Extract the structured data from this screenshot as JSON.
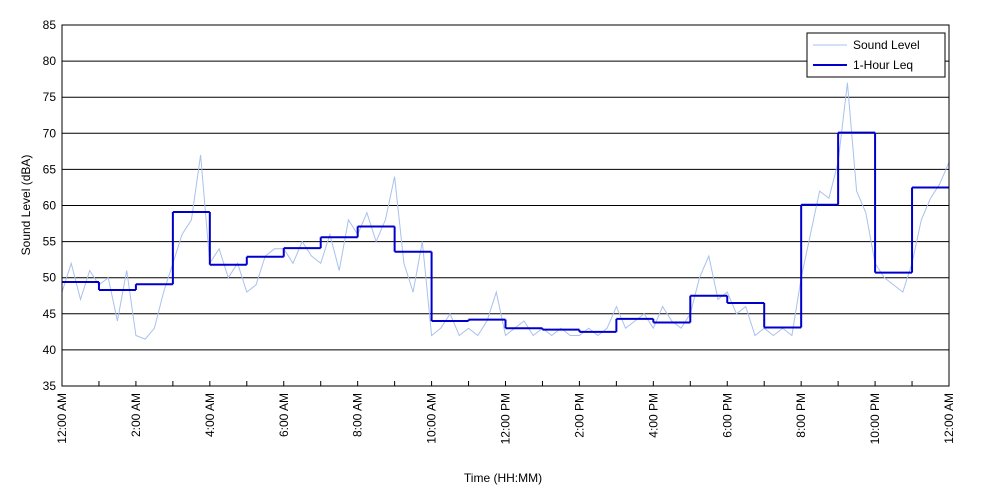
{
  "chart_data": {
    "type": "line",
    "xlabel": "Time (HH:MM)",
    "ylabel": "Sound Level (dBA)",
    "xlim": [
      0,
      24
    ],
    "ylim": [
      35,
      85
    ],
    "xticks": [
      {
        "value": 0,
        "label": "12:00 AM"
      },
      {
        "value": 2,
        "label": "2:00 AM"
      },
      {
        "value": 4,
        "label": "4:00 AM"
      },
      {
        "value": 6,
        "label": "6:00 AM"
      },
      {
        "value": 8,
        "label": "8:00 AM"
      },
      {
        "value": 10,
        "label": "10:00 AM"
      },
      {
        "value": 12,
        "label": "12:00 PM"
      },
      {
        "value": 14,
        "label": "2:00 PM"
      },
      {
        "value": 16,
        "label": "4:00 PM"
      },
      {
        "value": 18,
        "label": "6:00 PM"
      },
      {
        "value": 20,
        "label": "8:00 PM"
      },
      {
        "value": 22,
        "label": "10:00 PM"
      },
      {
        "value": 24,
        "label": "12:00 AM"
      }
    ],
    "xminorticks": [
      1,
      3,
      5,
      7,
      9,
      11,
      13,
      15,
      17,
      19,
      21,
      23
    ],
    "yticks": [
      35,
      40,
      45,
      50,
      55,
      60,
      65,
      70,
      75,
      80,
      85
    ],
    "grid": true,
    "legend": "upper right",
    "series": [
      {
        "name": "Sound Level",
        "color": "#a9c1ee",
        "x": [
          0,
          0.25,
          0.5,
          0.75,
          1,
          1.25,
          1.5,
          1.75,
          2,
          2.25,
          2.5,
          2.75,
          3,
          3.25,
          3.5,
          3.75,
          4,
          4.25,
          4.5,
          4.75,
          5,
          5.25,
          5.5,
          5.75,
          6,
          6.25,
          6.5,
          6.75,
          7,
          7.25,
          7.5,
          7.75,
          8,
          8.25,
          8.5,
          8.75,
          9,
          9.25,
          9.5,
          9.75,
          10,
          10.25,
          10.5,
          10.75,
          11,
          11.25,
          11.5,
          11.75,
          12,
          12.25,
          12.5,
          12.75,
          13,
          13.25,
          13.5,
          13.75,
          14,
          14.25,
          14.5,
          14.75,
          15,
          15.25,
          15.5,
          15.75,
          16,
          16.25,
          16.5,
          16.75,
          17,
          17.25,
          17.5,
          17.75,
          18,
          18.25,
          18.5,
          18.75,
          19,
          19.25,
          19.5,
          19.75,
          20,
          20.25,
          20.5,
          20.75,
          21,
          21.25,
          21.5,
          21.75,
          22,
          22.25,
          22.5,
          22.75,
          23,
          23.25,
          23.5,
          23.75,
          24
        ],
        "values": [
          48,
          52,
          47,
          51,
          49,
          50,
          44,
          51,
          42,
          41.5,
          43,
          48,
          52,
          56,
          58,
          67,
          52,
          54,
          50,
          52,
          48,
          49,
          53,
          54,
          54,
          52,
          55,
          53,
          52,
          56,
          51,
          58,
          56,
          59,
          55,
          58,
          64,
          52,
          48,
          55,
          42,
          43,
          45,
          42,
          43,
          42,
          44,
          48,
          42,
          43,
          44,
          42,
          43,
          42,
          43,
          42,
          42,
          43,
          42,
          43,
          46,
          43,
          44,
          45,
          43,
          46,
          44,
          43,
          45,
          50,
          53,
          47,
          48,
          45,
          46,
          42,
          43,
          42,
          43,
          42,
          50,
          56,
          62,
          61,
          66,
          77,
          62,
          59,
          52,
          50,
          49,
          48,
          52,
          58,
          61,
          63,
          66
        ]
      },
      {
        "name": "1-Hour Leq",
        "color": "#0000cc",
        "step": "post",
        "x": [
          0,
          1,
          2,
          3,
          4,
          5,
          6,
          7,
          8,
          9,
          10,
          11,
          12,
          13,
          14,
          15,
          16,
          17,
          18,
          19,
          20,
          21,
          22,
          23
        ],
        "values": [
          49.4,
          48.3,
          49.1,
          59.1,
          51.8,
          52.9,
          54.1,
          55.6,
          57.1,
          53.6,
          44.0,
          44.2,
          43.0,
          42.8,
          42.5,
          44.3,
          43.8,
          47.5,
          46.5,
          43.1,
          60.1,
          70.1,
          50.7,
          62.5
        ]
      }
    ]
  }
}
